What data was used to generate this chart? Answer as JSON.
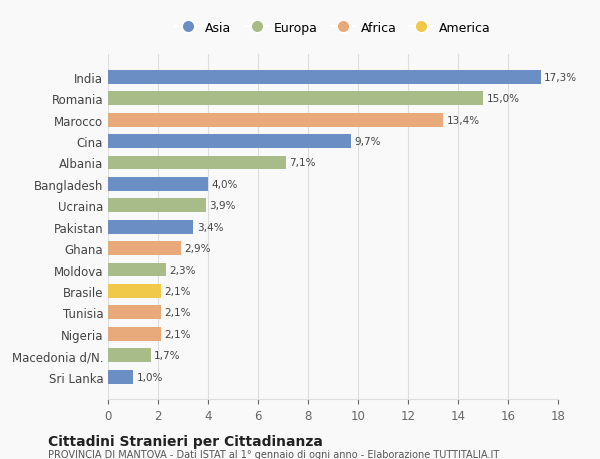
{
  "categories": [
    "Sri Lanka",
    "Macedonia d/N.",
    "Nigeria",
    "Tunisia",
    "Brasile",
    "Moldova",
    "Ghana",
    "Pakistan",
    "Ucraina",
    "Bangladesh",
    "Albania",
    "Cina",
    "Marocco",
    "Romania",
    "India"
  ],
  "values": [
    1.0,
    1.7,
    2.1,
    2.1,
    2.1,
    2.3,
    2.9,
    3.4,
    3.9,
    4.0,
    7.1,
    9.7,
    13.4,
    15.0,
    17.3
  ],
  "labels": [
    "1,0%",
    "1,7%",
    "2,1%",
    "2,1%",
    "2,1%",
    "2,3%",
    "2,9%",
    "3,4%",
    "3,9%",
    "4,0%",
    "7,1%",
    "9,7%",
    "13,4%",
    "15,0%",
    "17,3%"
  ],
  "colors": [
    "#6b8ec4",
    "#a8bc8a",
    "#e8aa7a",
    "#e8aa7a",
    "#f0c84a",
    "#a8bc8a",
    "#e8aa7a",
    "#6b8ec4",
    "#a8bc8a",
    "#6b8ec4",
    "#a8bc8a",
    "#6b8ec4",
    "#e8aa7a",
    "#a8bc8a",
    "#6b8ec4"
  ],
  "legend_labels": [
    "Asia",
    "Europa",
    "Africa",
    "America"
  ],
  "legend_colors": [
    "#6b8ec4",
    "#a8bc8a",
    "#e8aa7a",
    "#f0c84a"
  ],
  "title": "Cittadini Stranieri per Cittadinanza",
  "subtitle": "PROVINCIA DI MANTOVA - Dati ISTAT al 1° gennaio di ogni anno - Elaborazione TUTTITALIA.IT",
  "xlim": [
    0,
    18
  ],
  "xticks": [
    0,
    2,
    4,
    6,
    8,
    10,
    12,
    14,
    16,
    18
  ],
  "background_color": "#f9f9f9",
  "grid_color": "#dddddd",
  "bar_height": 0.65
}
